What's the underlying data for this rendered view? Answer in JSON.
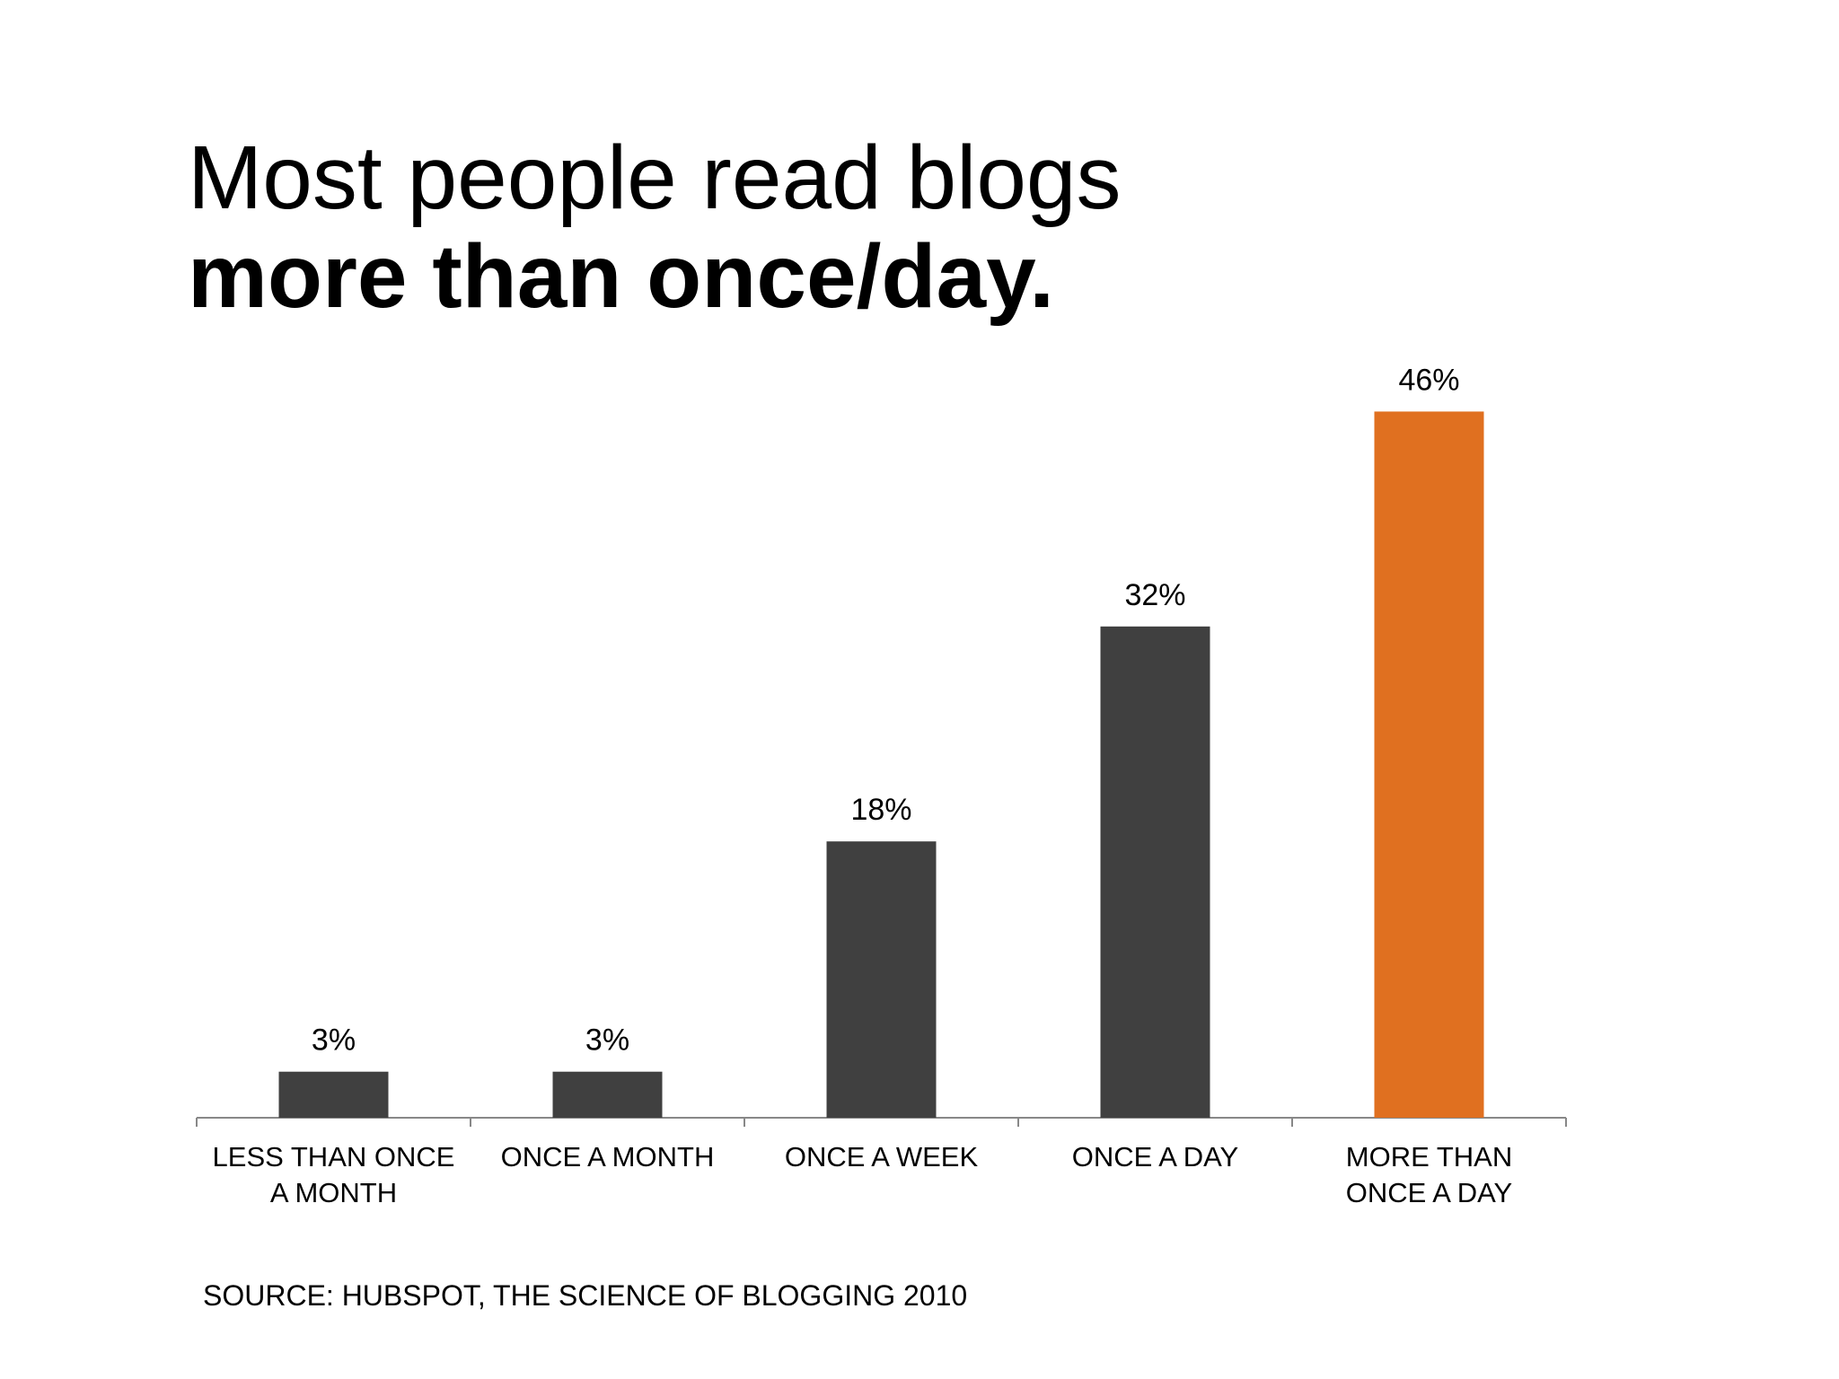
{
  "chart_data": {
    "type": "bar",
    "title": "Most people read blogs",
    "subtitle": "more than once/day.",
    "categories": [
      [
        "LESS THAN ONCE",
        "A MONTH"
      ],
      [
        "ONCE A MONTH"
      ],
      [
        "ONCE A WEEK"
      ],
      [
        "ONCE A DAY"
      ],
      [
        "MORE THAN",
        "ONCE A DAY"
      ]
    ],
    "values": [
      3,
      3,
      18,
      32,
      46
    ],
    "value_labels": [
      "3%",
      "3%",
      "18%",
      "32%",
      "46%"
    ],
    "colors": [
      "#404040",
      "#404040",
      "#404040",
      "#404040",
      "#e07020"
    ],
    "source": "SOURCE: HUBSPOT, THE SCIENCE OF BLOGGING 2010"
  }
}
